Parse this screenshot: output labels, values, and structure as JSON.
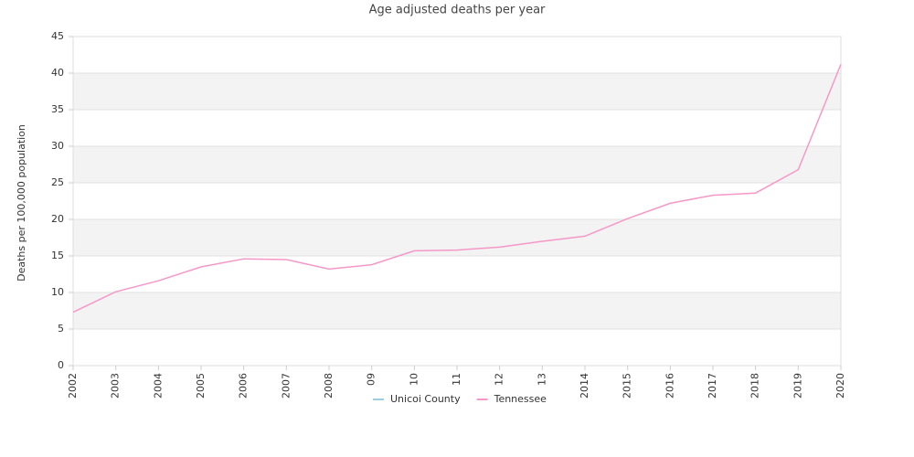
{
  "chart_data": {
    "type": "line",
    "title": "Age adjusted deaths per year",
    "y_label": "Deaths per 100,000 population",
    "categories": [
      "2002",
      "2003",
      "2004",
      "2005",
      "2006",
      "2007",
      "2008",
      "09",
      "10",
      "11",
      "12",
      "13",
      "2014",
      "2015",
      "2016",
      "2017",
      "2018",
      "2019",
      "2020"
    ],
    "series": [
      {
        "name": "Unicoi County",
        "color": "#9ad0e0",
        "values": [
          null,
          null,
          null,
          null,
          null,
          null,
          null,
          null,
          null,
          null,
          null,
          null,
          null,
          null,
          null,
          null,
          null,
          null,
          null
        ]
      },
      {
        "name": "Tennessee",
        "color": "#f598c8",
        "values": [
          7.3,
          10.1,
          11.6,
          13.5,
          14.6,
          14.5,
          13.2,
          13.8,
          15.7,
          15.8,
          16.2,
          17.0,
          17.7,
          20.1,
          22.2,
          23.3,
          23.6,
          26.8,
          41.2
        ]
      }
    ],
    "ylim": [
      0,
      45
    ],
    "yticks": [
      0,
      5,
      10,
      15,
      20,
      25,
      30,
      35,
      40,
      45
    ],
    "grid": true,
    "legend": "bottom"
  }
}
